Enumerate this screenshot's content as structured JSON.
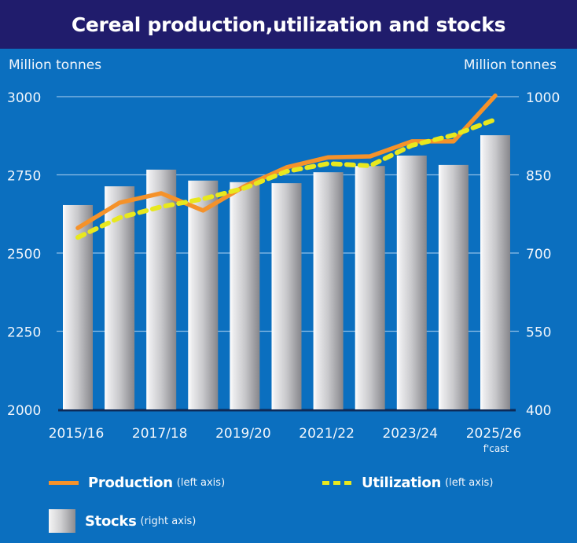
{
  "title": "Cereal production,utilization and stocks",
  "axis_units": {
    "left": "Million tonnes",
    "right": "Million tonnes"
  },
  "colors": {
    "title_bar": "#201c6c",
    "background": "#0b6fbf",
    "production": "#f5922a",
    "utilization": "#e8e81e",
    "stocks_light": "#f5f5f5",
    "stocks_dark": "#8c8c90",
    "gridline": "#8fbfe6"
  },
  "chart_data": {
    "type": "bar+line",
    "title": "Cereal production,utilization and stocks",
    "categories": [
      "2015/16",
      "2016/17",
      "2017/18",
      "2018/19",
      "2019/20",
      "2020/21",
      "2021/22",
      "2022/23",
      "2023/24",
      "2024/25",
      "2025/26"
    ],
    "x_tick_labels": [
      "2015/16",
      "2017/18",
      "2019/20",
      "2021/22",
      "2023/24",
      "2025/26"
    ],
    "x_tick_note": {
      "category": "2025/26",
      "text": "f'cast"
    },
    "left_axis": {
      "label": "Million tonnes",
      "ylim": [
        2000,
        3000
      ],
      "ticks": [
        2000,
        2250,
        2500,
        2750,
        3000
      ]
    },
    "right_axis": {
      "label": "Million tonnes",
      "ylim": [
        400,
        1000
      ],
      "ticks": [
        400,
        550,
        700,
        850,
        1000
      ]
    },
    "grid": true,
    "series": [
      {
        "name": "Production",
        "axis": "left",
        "type": "line",
        "style": "solid",
        "values": [
          2580,
          2661,
          2691,
          2636,
          2714,
          2774,
          2806,
          2809,
          2857,
          2857,
          3003
        ]
      },
      {
        "name": "Utilization",
        "axis": "left",
        "type": "line",
        "style": "dashed",
        "values": [
          2550,
          2613,
          2648,
          2673,
          2708,
          2761,
          2786,
          2779,
          2844,
          2877,
          2927
        ]
      },
      {
        "name": "Stocks",
        "axis": "right",
        "type": "bar",
        "values": [
          792,
          828,
          860,
          839,
          836,
          834,
          855,
          867,
          887,
          869,
          926
        ]
      }
    ],
    "legend_position": "bottom"
  },
  "legend": [
    {
      "key": "production",
      "label": "Production",
      "note": "(left axis)"
    },
    {
      "key": "utilization",
      "label": "Utilization",
      "note": "(left axis)"
    },
    {
      "key": "stocks",
      "label": "Stocks",
      "note": "(right axis)"
    }
  ]
}
